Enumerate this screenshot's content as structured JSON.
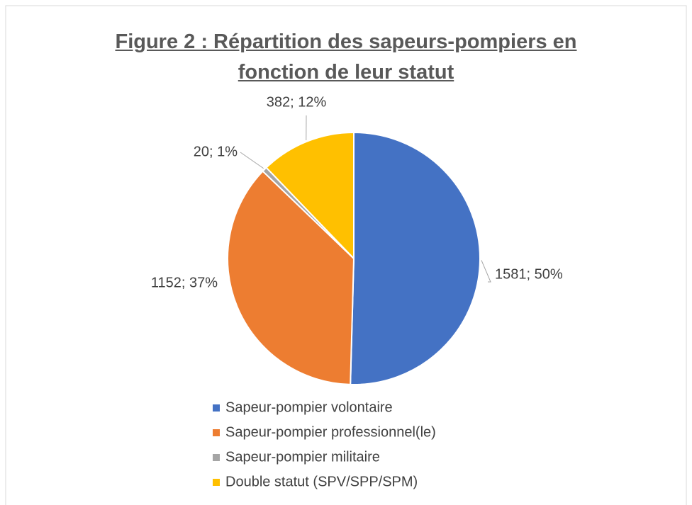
{
  "chart_data": {
    "type": "pie",
    "title": "Figure 2 : Répartition des sapeurs-pompiers en fonction de leur statut",
    "categories": [
      "Sapeur-pompier volontaire",
      "Sapeur-pompier professionnel(le)",
      "Sapeur-pompier militaire",
      "Double statut (SPV/SPP/SPM)"
    ],
    "values": [
      1581,
      1152,
      20,
      382
    ],
    "value_labels": [
      "1581; 50%",
      "1152; 37%",
      "20; 1%",
      "382; 12%"
    ],
    "colors": [
      "#4472c4",
      "#ed7d31",
      "#a5a5a5",
      "#ffc000"
    ],
    "legend": "bottom"
  }
}
